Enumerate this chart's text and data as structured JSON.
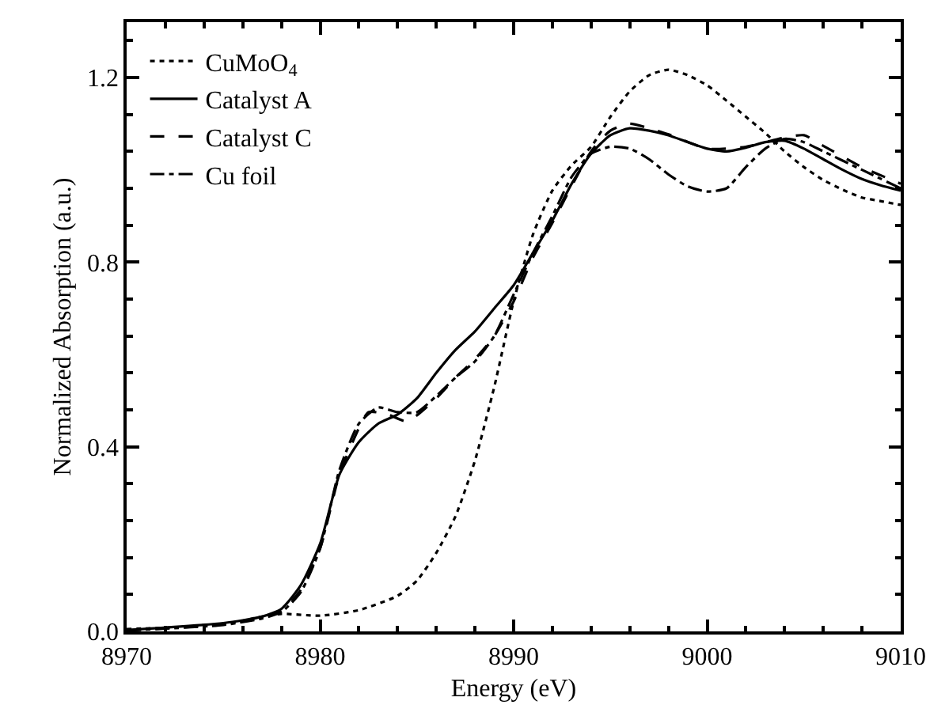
{
  "chart_data": {
    "type": "line",
    "xlabel": "Energy (eV)",
    "ylabel": "Normalized Absorption (a.u.)",
    "xlim": [
      8970,
      9010
    ],
    "xticks": [
      8970,
      8980,
      8990,
      9000,
      9010
    ],
    "ylim": [
      0,
      1.32
    ],
    "yticks": [
      {
        "value": 0,
        "label": "0.0"
      },
      {
        "value": 0.4,
        "label": "0.4"
      },
      {
        "value": 0.8,
        "label": "0.8"
      },
      {
        "value": 1.2,
        "label": "1.2"
      }
    ],
    "grid": false,
    "legend": "top left",
    "marker": "none",
    "series": [
      {
        "name": "CuMoO$_{4}$",
        "color": "#000000",
        "line_style": "dotted",
        "x": [
          8970,
          8975,
          8977,
          8978,
          8980,
          8982,
          8984,
          8985,
          8986,
          8987,
          8988,
          8989,
          8990,
          8991,
          8992,
          8993,
          8994,
          8995,
          8996,
          8997,
          8998,
          8999,
          9000,
          9001,
          9002,
          9003,
          9004,
          9005,
          9006,
          9007,
          9008,
          9009,
          9010
        ],
        "values": [
          0.005,
          0.015,
          0.032,
          0.038,
          0.034,
          0.046,
          0.077,
          0.11,
          0.17,
          0.25,
          0.37,
          0.53,
          0.715,
          0.86,
          0.955,
          1.01,
          1.05,
          1.115,
          1.17,
          1.205,
          1.217,
          1.205,
          1.183,
          1.15,
          1.115,
          1.08,
          1.04,
          1.006,
          0.978,
          0.957,
          0.94,
          0.932,
          0.924
        ]
      },
      {
        "name": "Catalyst A",
        "color": "#000000",
        "line_style": "solid",
        "x": [
          8970,
          8975,
          8977,
          8978,
          8979,
          8980,
          8981,
          8982,
          8983,
          8984,
          8985,
          8986,
          8987,
          8988,
          8989,
          8990,
          8991,
          8992,
          8993,
          8994,
          8995,
          8996,
          8997,
          8998,
          8999,
          9000,
          9001,
          9002,
          9003,
          9004,
          9005,
          9006,
          9007,
          9008,
          9009,
          9010
        ],
        "values": [
          0.003,
          0.018,
          0.032,
          0.049,
          0.1,
          0.19,
          0.34,
          0.41,
          0.45,
          0.47,
          0.505,
          0.56,
          0.61,
          0.65,
          0.7,
          0.75,
          0.82,
          0.89,
          0.97,
          1.035,
          1.075,
          1.09,
          1.085,
          1.075,
          1.06,
          1.046,
          1.04,
          1.048,
          1.06,
          1.063,
          1.046,
          1.023,
          1.0,
          0.98,
          0.966,
          0.955
        ]
      },
      {
        "name": "Catalyst C",
        "color": "#000000",
        "line_style": "dashed",
        "x": [
          8970,
          8975,
          8977,
          8978,
          8979,
          8980,
          8981,
          8982,
          8982.5,
          8983.5,
          8984.5,
          8986,
          8987,
          8988,
          8989,
          8990,
          8991,
          8992,
          8993,
          8994,
          8995,
          8996,
          8997,
          8998,
          9000,
          9002,
          9004,
          9005,
          9006,
          9008,
          9010
        ],
        "values": [
          0.002,
          0.015,
          0.03,
          0.045,
          0.09,
          0.18,
          0.34,
          0.44,
          0.475,
          0.47,
          0.455,
          0.505,
          0.55,
          0.59,
          0.64,
          0.715,
          0.81,
          0.885,
          0.965,
          1.04,
          1.085,
          1.1,
          1.09,
          1.077,
          1.046,
          1.05,
          1.07,
          1.075,
          1.052,
          1.006,
          0.97
        ]
      },
      {
        "name": "Cu foil",
        "color": "#000000",
        "line_style": "dashdot",
        "x": [
          8970,
          8975,
          8977,
          8978,
          8979,
          8980,
          8981,
          8982,
          8983,
          8984,
          8985,
          8986,
          8987,
          8988,
          8989,
          8990,
          8991,
          8992,
          8993,
          8994,
          8995,
          8996,
          8997,
          8998,
          8999,
          9000,
          9001,
          9002,
          9003,
          9004,
          9005,
          9006,
          9008,
          9010
        ],
        "values": [
          0.002,
          0.014,
          0.028,
          0.042,
          0.085,
          0.18,
          0.35,
          0.45,
          0.485,
          0.475,
          0.475,
          0.51,
          0.55,
          0.585,
          0.64,
          0.73,
          0.82,
          0.9,
          0.985,
          1.035,
          1.05,
          1.046,
          1.023,
          0.99,
          0.964,
          0.953,
          0.96,
          1.006,
          1.046,
          1.067,
          1.06,
          1.04,
          1.0,
          0.96
        ]
      }
    ]
  }
}
